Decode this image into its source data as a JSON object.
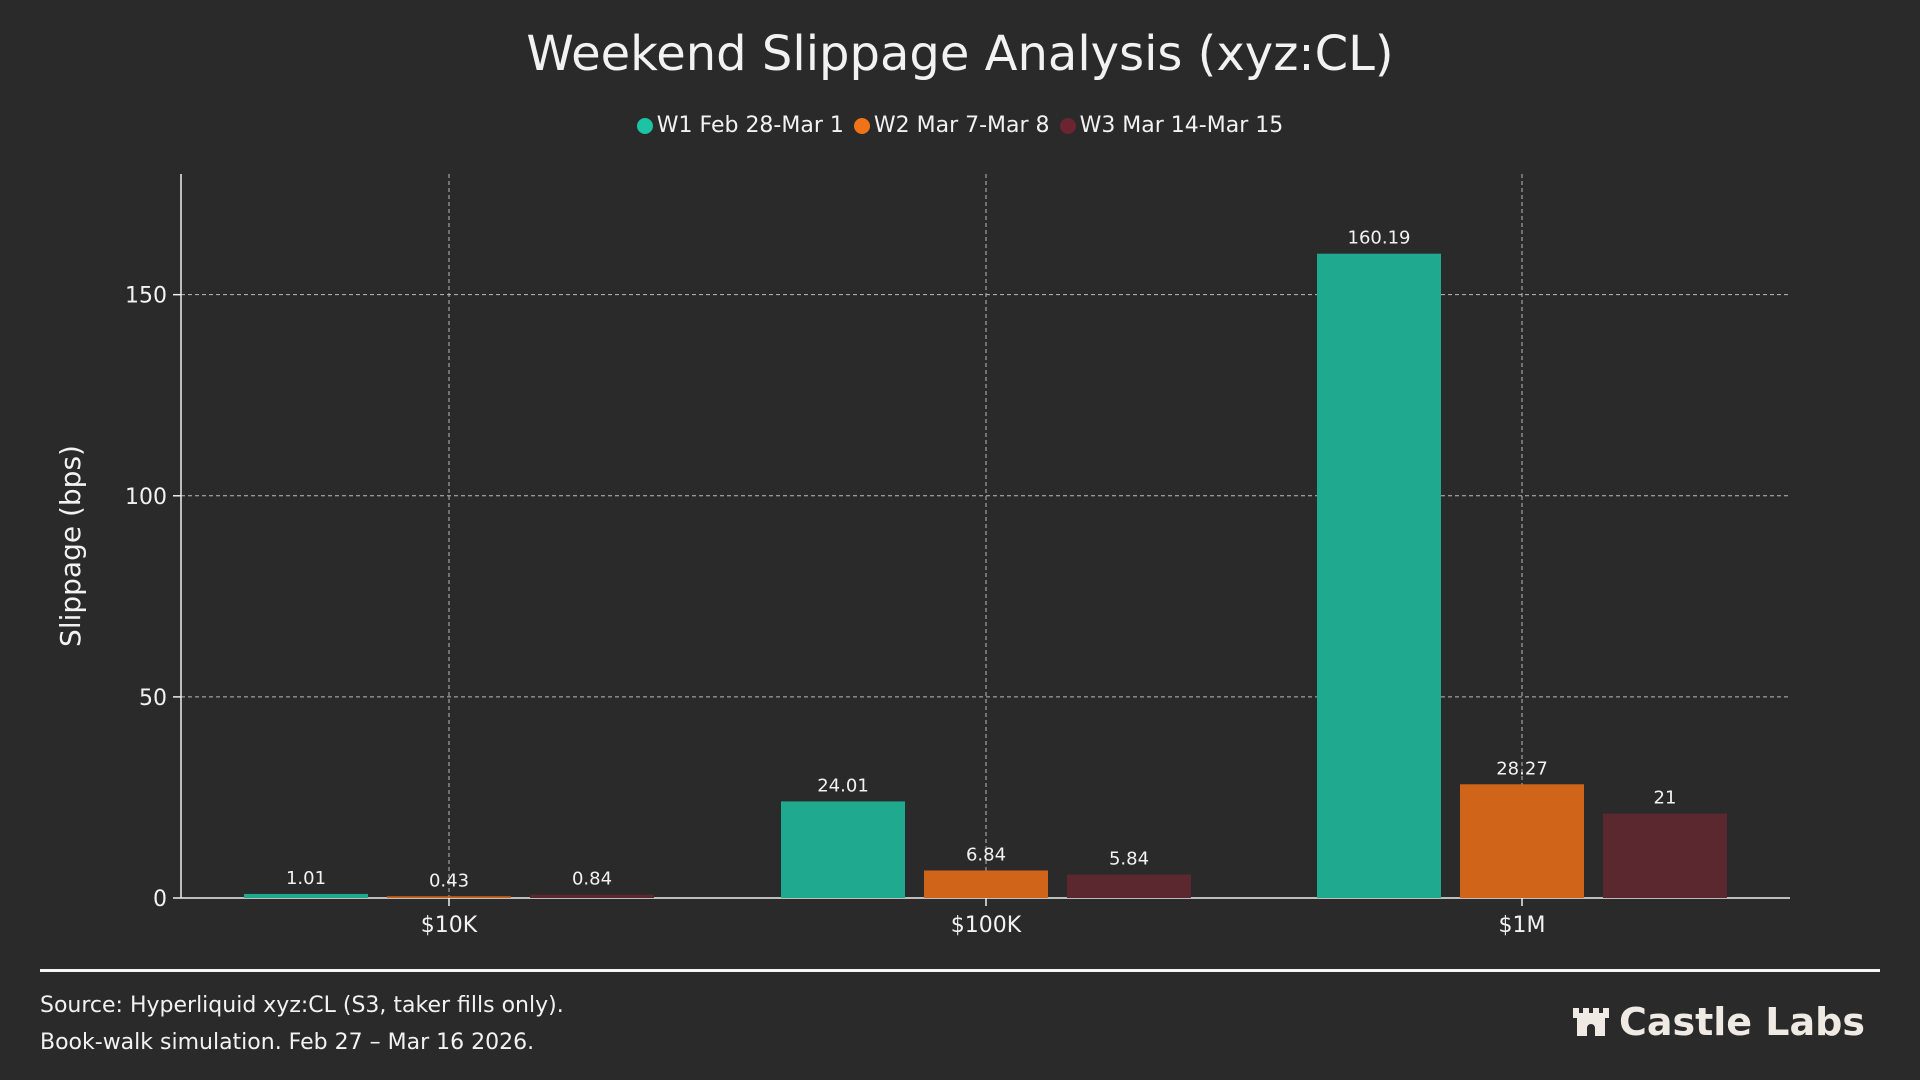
{
  "chart_data": {
    "type": "bar",
    "title": "Weekend Slippage Analysis (xyz:CL)",
    "xlabel": "",
    "ylabel": "Slippage (bps)",
    "categories": [
      "$10K",
      "$100K",
      "$1M"
    ],
    "ylim": [
      0,
      180
    ],
    "yticks": [
      0,
      50,
      100,
      150
    ],
    "grid": true,
    "legend_position": "top-center",
    "series": [
      {
        "name": "W1 Feb 28-Mar 1",
        "color": "#1fa98f",
        "legend_color": "#1cc3a5",
        "values": [
          1.01,
          24.01,
          160.19
        ],
        "labels": [
          "1.01",
          "24.01",
          "160.19"
        ]
      },
      {
        "name": "W2 Mar 7-Mar 8",
        "color": "#d0651a",
        "legend_color": "#f07318",
        "values": [
          0.43,
          6.84,
          28.27
        ],
        "labels": [
          "0.43",
          "6.84",
          "28.27"
        ]
      },
      {
        "name": "W3 Mar 14-Mar 15",
        "color": "#5c2830",
        "legend_color": "#6b2530",
        "values": [
          0.84,
          5.84,
          21
        ],
        "labels": [
          "0.84",
          "5.84",
          "21"
        ]
      }
    ]
  },
  "footer": {
    "source": "Source:  Hyperliquid  xyz:CL  (S3,  taker  fills  only).",
    "note": "Book-walk simulation. Feb 27 – Mar 16 2026.",
    "logo": "Castle Labs"
  }
}
